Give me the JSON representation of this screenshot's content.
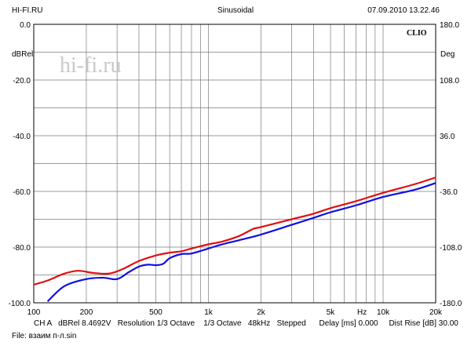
{
  "header": {
    "left": "HI-FI.RU",
    "center": "Sinusoidal",
    "right": "07.09.2010 13.22.46"
  },
  "brand": {
    "clio": "CLIO",
    "watermark": "hi-fi.ru"
  },
  "footer": {
    "line1": "CH A   dBRel 8.4692V   Resolution 1/3 Octave    1/3 Octave   48kHz   Stepped      Delay [ms] 0.000     Dist Rise [dB] 30.00",
    "line2": "File: взаим п-л.sin"
  },
  "chart_data": {
    "type": "line",
    "x_scale": "log",
    "xlim": [
      100,
      20000
    ],
    "ylim": [
      -100,
      0
    ],
    "y2lim": [
      -180,
      180
    ],
    "grid": true,
    "ylabel": "dBRel",
    "y2label": "Deg",
    "xlabel": "Hz",
    "x_ticks": [
      {
        "v": 100,
        "label": "100"
      },
      {
        "v": 200,
        "label": "200"
      },
      {
        "v": 500,
        "label": "500"
      },
      {
        "v": 1000,
        "label": "1k"
      },
      {
        "v": 2000,
        "label": "2k"
      },
      {
        "v": 5000,
        "label": "5k"
      },
      {
        "v": 10000,
        "label": "10k"
      },
      {
        "v": 20000,
        "label": "20k"
      }
    ],
    "y_ticks": [
      {
        "v": 0,
        "label": "0.0"
      },
      {
        "v": -20,
        "label": "-20.0"
      },
      {
        "v": -40,
        "label": "-40.0"
      },
      {
        "v": -60,
        "label": "-60.0"
      },
      {
        "v": -80,
        "label": "-80.0"
      },
      {
        "v": -100,
        "label": "-100.0"
      }
    ],
    "y2_ticks": [
      {
        "v": 180,
        "label": "180.0"
      },
      {
        "v": 108,
        "label": "108.0"
      },
      {
        "v": 36,
        "label": "36.0"
      },
      {
        "v": -36,
        "label": "-36.0"
      },
      {
        "v": -108,
        "label": "-108.0"
      },
      {
        "v": -180,
        "label": "-180.0"
      }
    ],
    "series": [
      {
        "color": "#e01010",
        "x": [
          100,
          120,
          150,
          180,
          220,
          270,
          320,
          400,
          500,
          600,
          700,
          800,
          1000,
          1200,
          1500,
          1800,
          2000,
          3000,
          4000,
          5000,
          7000,
          10000,
          15000,
          20000
        ],
        "y": [
          -93.5,
          -92,
          -89.5,
          -88.5,
          -89.3,
          -89.5,
          -88,
          -85,
          -83,
          -82,
          -81.5,
          -80.5,
          -79,
          -78,
          -76,
          -73.5,
          -72.8,
          -70,
          -68,
          -66,
          -63.5,
          -60.5,
          -57.5,
          -55
        ]
      },
      {
        "color": "#1010e0",
        "x": [
          120,
          150,
          200,
          250,
          300,
          350,
          400,
          450,
          500,
          550,
          600,
          700,
          800,
          1000,
          1200,
          1500,
          2000,
          3000,
          4000,
          5000,
          7000,
          10000,
          15000,
          20000
        ],
        "y": [
          -99.5,
          -94,
          -91.5,
          -91,
          -91.5,
          -89,
          -87,
          -86.3,
          -86.5,
          -86,
          -84,
          -82.5,
          -82.3,
          -80.5,
          -79,
          -77.5,
          -75.5,
          -72,
          -69.5,
          -67.5,
          -65,
          -62,
          -59.5,
          -57
        ]
      }
    ]
  }
}
